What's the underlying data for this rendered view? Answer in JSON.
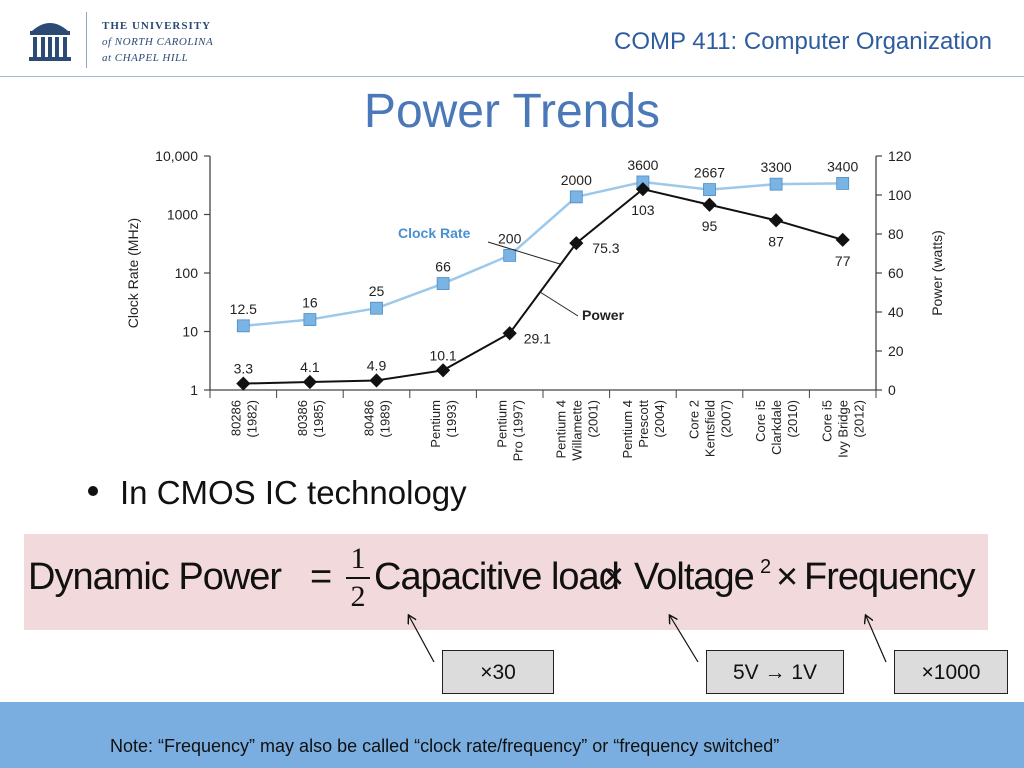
{
  "header": {
    "university_line1": "THE UNIVERSITY",
    "university_line2": "of NORTH CAROLINA",
    "university_line3": "at CHAPEL HILL",
    "course": "COMP 411: Computer Organization",
    "logo_icon": "old-well-icon"
  },
  "slide": {
    "title": "Power Trends",
    "bullet": "In CMOS IC technology"
  },
  "formula": {
    "lhs": "Dynamic Power",
    "equals": "=",
    "frac_num": "1",
    "frac_den": "2",
    "term1": "Capacitive load",
    "times": "×",
    "term2": "Voltage",
    "exponent": "2",
    "term3": "Frequency"
  },
  "annotations": {
    "cap": "×30",
    "volt": "5V → 1V",
    "freq": "×1000"
  },
  "footer": {
    "note": "Note:  “Frequency” may also be called “clock rate/frequency” or “frequency switched”"
  },
  "colors": {
    "clock": "#9cc8ea",
    "clock_marker": "#7ab4e4",
    "power": "#111111",
    "course": "#2e5c9e",
    "title": "#4a78b8",
    "formula_bg": "#f2d9dc",
    "footer_bg": "#7aaee0"
  },
  "chart_data": {
    "type": "line",
    "categories": [
      [
        "80286",
        "(1982)"
      ],
      [
        "80386",
        "(1985)"
      ],
      [
        "80486",
        "(1989)"
      ],
      [
        "Pentium",
        "(1993)"
      ],
      [
        "Pentium",
        "Pro (1997)"
      ],
      [
        "Pentium 4",
        "Willamette",
        "(2001)"
      ],
      [
        "Pentium 4",
        "Prescott",
        "(2004)"
      ],
      [
        "Core 2",
        "Kentsfield",
        "(2007)"
      ],
      [
        "Core i5",
        "Clarkdale",
        "(2010)"
      ],
      [
        "Core i5",
        "Ivy Bridge",
        "(2012)"
      ]
    ],
    "series": [
      {
        "name": "Clock Rate",
        "axis": "left",
        "values": [
          12.5,
          16,
          25,
          66,
          200,
          2000,
          3600,
          2667,
          3300,
          3400
        ],
        "labels": [
          "12.5",
          "16",
          "25",
          "66",
          "200",
          "2000",
          "3600",
          "2667",
          "3300",
          "3400"
        ]
      },
      {
        "name": "Power",
        "axis": "right",
        "values": [
          3.3,
          4.1,
          4.9,
          10.1,
          29.1,
          75.3,
          103,
          95,
          87,
          77
        ],
        "labels": [
          "3.3",
          "4.1",
          "4.9",
          "10.1",
          "29.1",
          "75.3",
          "103",
          "95",
          "87",
          "77"
        ]
      }
    ],
    "ylabel": "Clock Rate (MHz)",
    "y2label": "Power (watts)",
    "yscale": "log",
    "ylim": [
      1,
      10000
    ],
    "y_ticks": [
      "1",
      "10",
      "100",
      "1000",
      "10,000"
    ],
    "y2lim": [
      0,
      120
    ],
    "y2_ticks": [
      "0",
      "20",
      "40",
      "60",
      "80",
      "100",
      "120"
    ],
    "grid": false
  }
}
